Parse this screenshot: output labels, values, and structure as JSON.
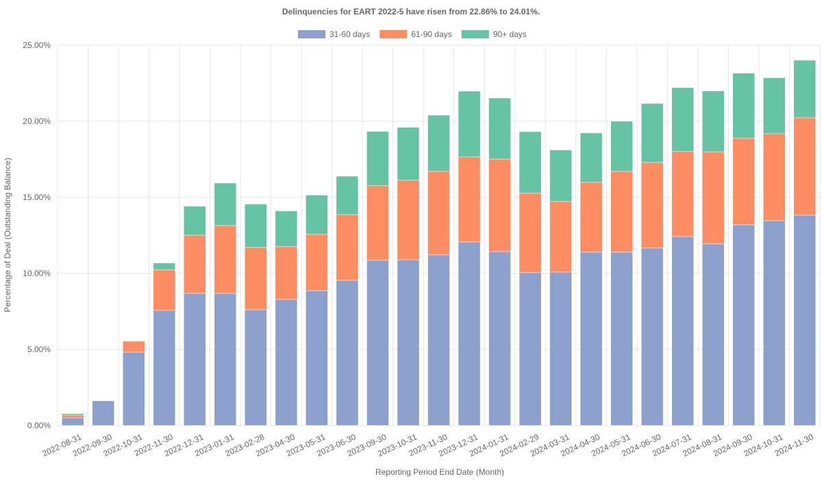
{
  "chart_data": {
    "type": "stacked-bar",
    "title": "Delinquencies for EART 2022-5 have risen from 22.86% to 24.01%.",
    "x_label": "Reporting Period End Date (Month)",
    "y_label": "Percentage of Deal (Outstanding Balance)",
    "categories": [
      "2022-08-31",
      "2022-09-30",
      "2022-10-31",
      "2022-11-30",
      "2022-12-31",
      "2023-01-31",
      "2023-02-28",
      "2023-04-30",
      "2023-05-31",
      "2023-06-30",
      "2023-09-30",
      "2023-10-31",
      "2023-11-30",
      "2023-12-31",
      "2024-01-31",
      "2024-02-29",
      "2024-03-31",
      "2024-04-30",
      "2024-05-31",
      "2024-06-30",
      "2024-07-31",
      "2024-08-31",
      "2024-09-30",
      "2024-10-31",
      "2024-11-30"
    ],
    "series": [
      {
        "name": "31-60 days",
        "color": "#8da0cb",
        "values": [
          0.5,
          1.62,
          4.82,
          7.57,
          8.69,
          8.69,
          7.61,
          8.29,
          8.87,
          9.55,
          10.86,
          10.9,
          11.22,
          12.07,
          11.44,
          10.05,
          10.09,
          11.4,
          11.4,
          11.67,
          12.43,
          11.94,
          13.2,
          13.47,
          13.83
        ]
      },
      {
        "name": "61-90 days",
        "color": "#fc8d62",
        "values": [
          0.18,
          0,
          0.72,
          2.66,
          3.83,
          4.46,
          4.1,
          3.47,
          3.7,
          4.32,
          4.91,
          5.23,
          5.49,
          5.59,
          6.08,
          5.22,
          4.64,
          4.59,
          5.31,
          5.63,
          5.59,
          6.04,
          5.68,
          5.72,
          6.4
        ]
      },
      {
        "name": "90+ days",
        "color": "#66c2a5",
        "values": [
          0.1,
          0,
          0,
          0.45,
          1.89,
          2.79,
          2.84,
          2.34,
          2.57,
          2.52,
          3.56,
          3.47,
          3.69,
          4.32,
          4.01,
          4.05,
          3.38,
          3.24,
          3.29,
          3.87,
          4.19,
          4.01,
          4.28,
          3.67,
          3.78
        ]
      }
    ],
    "ylim": [
      0,
      25
    ],
    "yticks": [
      {
        "value": 0,
        "label": "0.00%"
      },
      {
        "value": 5,
        "label": "5.00%"
      },
      {
        "value": 10,
        "label": "10.00%"
      },
      {
        "value": 15,
        "label": "15.00%"
      },
      {
        "value": 20,
        "label": "20.00%"
      },
      {
        "value": 25,
        "label": "25.00%"
      }
    ],
    "grid": true
  }
}
